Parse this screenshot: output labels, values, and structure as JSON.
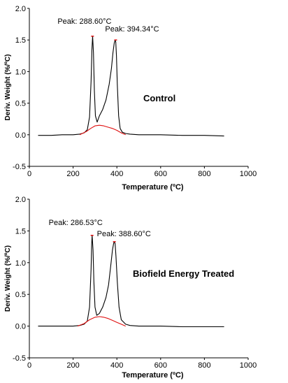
{
  "chart_data": [
    {
      "type": "line",
      "label": "Control",
      "xlabel": "Temperature (ºC)",
      "ylabel": "Deriv. Weight (%/ºC)",
      "xlim": [
        0,
        1000
      ],
      "ylim": [
        -0.5,
        2.0
      ],
      "xticks": [
        "0",
        "200",
        "400",
        "600",
        "800",
        "1000"
      ],
      "yticks": [
        "-0.5",
        "0.0",
        "0.5",
        "1.0",
        "1.5",
        "2.0"
      ],
      "annotations": [
        {
          "text": "Peak: 288.60°C",
          "x": 288.6,
          "y": 1.56
        },
        {
          "text": "Peak: 394.34°C",
          "x": 394.34,
          "y": 1.5
        }
      ],
      "series": [
        {
          "color": "#000000",
          "x": [
            40,
            100,
            150,
            200,
            230,
            250,
            265,
            275,
            282,
            286,
            289,
            293,
            297,
            302,
            310,
            320,
            335,
            350,
            365,
            375,
            382,
            388,
            392,
            395,
            398,
            402,
            408,
            415,
            425,
            440,
            460,
            500,
            600,
            700,
            800,
            890
          ],
          "y": [
            -0.01,
            -0.01,
            0.0,
            0.0,
            0.01,
            0.03,
            0.08,
            0.28,
            0.85,
            1.35,
            1.56,
            1.3,
            0.7,
            0.3,
            0.2,
            0.3,
            0.4,
            0.55,
            0.8,
            1.05,
            1.3,
            1.45,
            1.5,
            1.47,
            1.25,
            0.8,
            0.3,
            0.1,
            0.04,
            0.02,
            0.01,
            0.0,
            0.0,
            -0.01,
            -0.01,
            -0.02
          ]
        },
        {
          "color": "#e01010",
          "x": [
            230,
            260,
            280,
            300,
            320,
            340,
            360,
            380,
            400,
            420,
            440
          ],
          "y": [
            0.0,
            0.05,
            0.1,
            0.14,
            0.15,
            0.14,
            0.12,
            0.1,
            0.07,
            0.03,
            0.0
          ]
        }
      ]
    },
    {
      "type": "line",
      "label": "Biofield Energy Treated",
      "xlabel": "Temperature (ºC)",
      "ylabel": "Deriv. Weight (%/ºC)",
      "xlim": [
        0,
        1000
      ],
      "ylim": [
        -0.5,
        2.0
      ],
      "xticks": [
        "0",
        "200",
        "400",
        "600",
        "800",
        "1000"
      ],
      "yticks": [
        "-0.5",
        "0.0",
        "0.5",
        "1.0",
        "1.5",
        "2.0"
      ],
      "annotations": [
        {
          "text": "Peak: 286.53°C",
          "x": 286.53,
          "y": 1.43
        },
        {
          "text": "Peak: 388.60°C",
          "x": 388.6,
          "y": 1.33
        }
      ],
      "series": [
        {
          "color": "#000000",
          "x": [
            40,
            100,
            150,
            200,
            230,
            250,
            265,
            275,
            282,
            285,
            287,
            291,
            295,
            300,
            308,
            320,
            335,
            350,
            362,
            372,
            380,
            385,
            388,
            392,
            396,
            402,
            410,
            420,
            440,
            460,
            500,
            600,
            700,
            800,
            890
          ],
          "y": [
            0.0,
            0.0,
            0.0,
            0.0,
            0.01,
            0.03,
            0.08,
            0.3,
            0.9,
            1.3,
            1.43,
            1.2,
            0.7,
            0.3,
            0.17,
            0.2,
            0.3,
            0.45,
            0.65,
            0.95,
            1.2,
            1.3,
            1.33,
            1.3,
            1.1,
            0.7,
            0.3,
            0.1,
            0.03,
            0.01,
            0.0,
            0.0,
            -0.01,
            -0.01,
            -0.01
          ]
        },
        {
          "color": "#e01010",
          "x": [
            220,
            250,
            275,
            300,
            320,
            340,
            360,
            380,
            400,
            420,
            440
          ],
          "y": [
            0.0,
            0.04,
            0.1,
            0.14,
            0.15,
            0.14,
            0.12,
            0.09,
            0.06,
            0.03,
            0.0
          ]
        }
      ]
    }
  ]
}
